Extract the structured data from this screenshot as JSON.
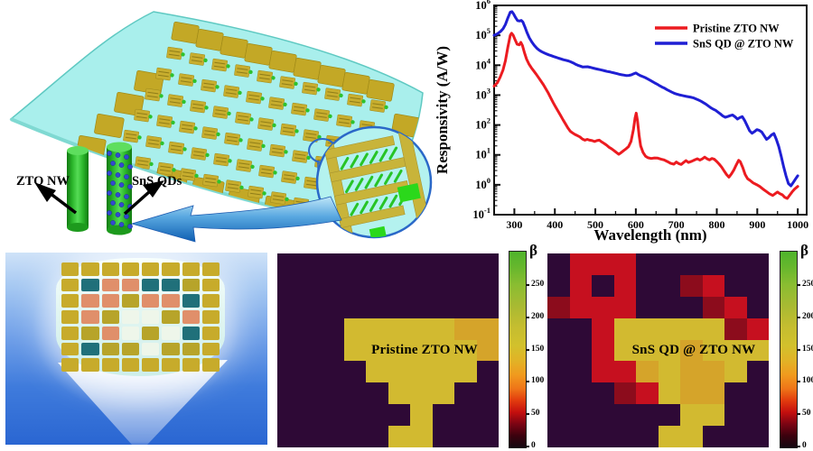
{
  "figure_labels": {
    "zto_nw": "ZTO NW",
    "sns_qds": "SnS QDs"
  },
  "colorbar": {
    "label": "β",
    "ticks": [
      0,
      50,
      100,
      150,
      200,
      250
    ],
    "value_max": 300
  },
  "heatmap_palette": {
    "D": "#2e0936",
    "M": "#8c0c1c",
    "R": "#c6101f",
    "Y": "#d2ba30",
    "O": "#d5a42a"
  },
  "panel_c_palette": {
    "p": "#c7ab2b",
    "g": "#b7a42a",
    "t": "#20707a",
    "s": "#e08f6a",
    "w": "#eef6ea"
  },
  "panel_c_pattern": [
    "pppppppp",
    "ptssttgp",
    "pssgsstp",
    "psgwwgsp",
    "pgswgwtp",
    "ptggwggp",
    "pppppppp"
  ],
  "chart_data": [
    {
      "type": "line",
      "title": "",
      "xlabel": "Wavelength (nm)",
      "ylabel": "Responsivity (A/W)",
      "x_ticks": [
        300,
        400,
        500,
        600,
        700,
        800,
        900,
        1000
      ],
      "x_range": [
        250,
        1022
      ],
      "y_scale": "log",
      "ylim": [
        0.1,
        1000000
      ],
      "y_tick_exponents": [
        6,
        5,
        4,
        3,
        2,
        1,
        0,
        -1
      ],
      "legend_position": "top-right",
      "grid": false,
      "series": [
        {
          "name": "Pristine ZTO NW",
          "color": "#ec1b20",
          "points": [
            [
              250,
              2000
            ],
            [
              258,
              2600
            ],
            [
              265,
              4000
            ],
            [
              272,
              7000
            ],
            [
              278,
              14000
            ],
            [
              284,
              40000
            ],
            [
              290,
              100000
            ],
            [
              293,
              118000
            ],
            [
              297,
              100000
            ],
            [
              302,
              70000
            ],
            [
              307,
              50000
            ],
            [
              312,
              48000
            ],
            [
              316,
              58000
            ],
            [
              320,
              45000
            ],
            [
              325,
              26000
            ],
            [
              330,
              16000
            ],
            [
              336,
              11000
            ],
            [
              342,
              8200
            ],
            [
              348,
              6400
            ],
            [
              354,
              5000
            ],
            [
              360,
              3800
            ],
            [
              366,
              2900
            ],
            [
              372,
              2200
            ],
            [
              378,
              1600
            ],
            [
              384,
              1150
            ],
            [
              390,
              800
            ],
            [
              396,
              560
            ],
            [
              402,
              400
            ],
            [
              408,
              290
            ],
            [
              414,
              210
            ],
            [
              420,
              150
            ],
            [
              426,
              110
            ],
            [
              432,
              80
            ],
            [
              438,
              62
            ],
            [
              444,
              54
            ],
            [
              450,
              48
            ],
            [
              456,
              44
            ],
            [
              462,
              40
            ],
            [
              468,
              34
            ],
            [
              474,
              31
            ],
            [
              480,
              33
            ],
            [
              486,
              31
            ],
            [
              492,
              30
            ],
            [
              498,
              28
            ],
            [
              504,
              30
            ],
            [
              510,
              31
            ],
            [
              516,
              27
            ],
            [
              522,
              24
            ],
            [
              528,
              21
            ],
            [
              534,
              18
            ],
            [
              540,
              16
            ],
            [
              546,
              14
            ],
            [
              552,
              12
            ],
            [
              558,
              10.5
            ],
            [
              564,
              12
            ],
            [
              570,
              14
            ],
            [
              576,
              16
            ],
            [
              582,
              19
            ],
            [
              588,
              28
            ],
            [
              594,
              70
            ],
            [
              598,
              170
            ],
            [
              601,
              250
            ],
            [
              604,
              140
            ],
            [
              608,
              45
            ],
            [
              612,
              20
            ],
            [
              618,
              12
            ],
            [
              624,
              9
            ],
            [
              630,
              8
            ],
            [
              638,
              7.6
            ],
            [
              646,
              7.9
            ],
            [
              654,
              7.8
            ],
            [
              662,
              7.2
            ],
            [
              670,
              6.8
            ],
            [
              678,
              6
            ],
            [
              686,
              5.2
            ],
            [
              694,
              4.9
            ],
            [
              700,
              5.8
            ],
            [
              706,
              5.1
            ],
            [
              712,
              4.8
            ],
            [
              718,
              5.6
            ],
            [
              724,
              6.4
            ],
            [
              730,
              5.6
            ],
            [
              738,
              6.1
            ],
            [
              746,
              6.9
            ],
            [
              752,
              7.4
            ],
            [
              758,
              6.7
            ],
            [
              764,
              7.3
            ],
            [
              770,
              8.4
            ],
            [
              776,
              7.4
            ],
            [
              782,
              6.8
            ],
            [
              788,
              7.6
            ],
            [
              794,
              7.1
            ],
            [
              800,
              6
            ],
            [
              806,
              4.9
            ],
            [
              812,
              3.9
            ],
            [
              818,
              2.9
            ],
            [
              824,
              2.2
            ],
            [
              830,
              1.8
            ],
            [
              836,
              2.3
            ],
            [
              842,
              3.1
            ],
            [
              848,
              4.6
            ],
            [
              854,
              6.6
            ],
            [
              858,
              5.9
            ],
            [
              864,
              3.8
            ],
            [
              870,
              2.2
            ],
            [
              876,
              1.6
            ],
            [
              882,
              1.4
            ],
            [
              890,
              1.15
            ],
            [
              898,
              1.02
            ],
            [
              906,
              0.88
            ],
            [
              914,
              0.72
            ],
            [
              922,
              0.6
            ],
            [
              930,
              0.5
            ],
            [
              938,
              0.44
            ],
            [
              944,
              0.5
            ],
            [
              950,
              0.57
            ],
            [
              956,
              0.5
            ],
            [
              962,
              0.46
            ],
            [
              968,
              0.38
            ],
            [
              974,
              0.35
            ],
            [
              980,
              0.45
            ],
            [
              986,
              0.58
            ],
            [
              992,
              0.72
            ],
            [
              1000,
              0.88
            ]
          ]
        },
        {
          "name": "SnS QD @ ZTO NW",
          "color": "#1f1fd4",
          "points": [
            [
              250,
              100000
            ],
            [
              258,
              112000
            ],
            [
              266,
              135000
            ],
            [
              272,
              165000
            ],
            [
              278,
              230000
            ],
            [
              284,
              380000
            ],
            [
              290,
              600000
            ],
            [
              294,
              620000
            ],
            [
              298,
              520000
            ],
            [
              303,
              390000
            ],
            [
              308,
              310000
            ],
            [
              313,
              300000
            ],
            [
              317,
              315000
            ],
            [
              321,
              280000
            ],
            [
              326,
              190000
            ],
            [
              331,
              125000
            ],
            [
              337,
              82000
            ],
            [
              343,
              60000
            ],
            [
              349,
              46000
            ],
            [
              355,
              37500
            ],
            [
              361,
              32000
            ],
            [
              367,
              28500
            ],
            [
              373,
              26000
            ],
            [
              379,
              24000
            ],
            [
              385,
              22200
            ],
            [
              391,
              20800
            ],
            [
              397,
              19500
            ],
            [
              403,
              18300
            ],
            [
              409,
              17200
            ],
            [
              415,
              16200
            ],
            [
              421,
              15300
            ],
            [
              427,
              14600
            ],
            [
              433,
              13900
            ],
            [
              439,
              13000
            ],
            [
              445,
              12000
            ],
            [
              451,
              10800
            ],
            [
              457,
              9900
            ],
            [
              463,
              9300
            ],
            [
              469,
              8700
            ],
            [
              475,
              8800
            ],
            [
              481,
              8900
            ],
            [
              487,
              8500
            ],
            [
              493,
              8100
            ],
            [
              499,
              7700
            ],
            [
              505,
              7400
            ],
            [
              511,
              7100
            ],
            [
              517,
              6800
            ],
            [
              523,
              6500
            ],
            [
              529,
              6200
            ],
            [
              535,
              6000
            ],
            [
              541,
              5750
            ],
            [
              547,
              5500
            ],
            [
              553,
              5250
            ],
            [
              559,
              5000
            ],
            [
              565,
              4800
            ],
            [
              571,
              4650
            ],
            [
              577,
              4500
            ],
            [
              583,
              4550
            ],
            [
              589,
              4750
            ],
            [
              595,
              5150
            ],
            [
              600,
              5500
            ],
            [
              605,
              5000
            ],
            [
              611,
              4500
            ],
            [
              617,
              4150
            ],
            [
              623,
              3850
            ],
            [
              629,
              3500
            ],
            [
              635,
              3150
            ],
            [
              641,
              2850
            ],
            [
              647,
              2550
            ],
            [
              653,
              2300
            ],
            [
              659,
              2050
            ],
            [
              665,
              1850
            ],
            [
              671,
              1700
            ],
            [
              677,
              1520
            ],
            [
              683,
              1380
            ],
            [
              689,
              1250
            ],
            [
              695,
              1150
            ],
            [
              701,
              1080
            ],
            [
              707,
              1020
            ],
            [
              713,
              980
            ],
            [
              719,
              940
            ],
            [
              725,
              905
            ],
            [
              731,
              875
            ],
            [
              737,
              845
            ],
            [
              743,
              800
            ],
            [
              749,
              745
            ],
            [
              755,
              685
            ],
            [
              761,
              625
            ],
            [
              767,
              560
            ],
            [
              773,
              500
            ],
            [
              779,
              435
            ],
            [
              785,
              380
            ],
            [
              791,
              340
            ],
            [
              797,
              310
            ],
            [
              803,
              270
            ],
            [
              809,
              235
            ],
            [
              815,
              200
            ],
            [
              821,
              182
            ],
            [
              827,
              192
            ],
            [
              833,
              205
            ],
            [
              839,
              216
            ],
            [
              845,
              188
            ],
            [
              851,
              158
            ],
            [
              857,
              176
            ],
            [
              863,
              190
            ],
            [
              869,
              140
            ],
            [
              875,
              95
            ],
            [
              881,
              64
            ],
            [
              887,
              53
            ],
            [
              893,
              60
            ],
            [
              899,
              70
            ],
            [
              905,
              66
            ],
            [
              911,
              58
            ],
            [
              917,
              44
            ],
            [
              923,
              33
            ],
            [
              929,
              38
            ],
            [
              935,
              46
            ],
            [
              941,
              52
            ],
            [
              947,
              33
            ],
            [
              953,
              19
            ],
            [
              959,
              9
            ],
            [
              965,
              4
            ],
            [
              971,
              2
            ],
            [
              977,
              1.1
            ],
            [
              983,
              0.92
            ],
            [
              989,
              1.2
            ],
            [
              995,
              1.6
            ],
            [
              1000,
              2
            ]
          ]
        }
      ]
    },
    {
      "type": "heatmap",
      "title": "Pristine ZTO NW",
      "colorbar_label": "β",
      "value_range": [
        0,
        300
      ],
      "value_map": {
        "D": 10,
        "M": 35,
        "R": 60,
        "O": 110,
        "Y": 150
      },
      "cells": [
        "DDDDDDDDDD",
        "DDDDDDDDDD",
        "DDDDDDDDDD",
        "DDDYYYYYOO",
        "DDDYYYYYYO",
        "DDDDYYYYYD",
        "DDDDDYYYDD",
        "DDDDDDYDDD",
        "DDDDDYYDDD"
      ]
    },
    {
      "type": "heatmap",
      "title": "SnS QD @ ZTO NW",
      "colorbar_label": "β",
      "value_range": [
        0,
        300
      ],
      "value_map": {
        "D": 10,
        "M": 35,
        "R": 60,
        "O": 110,
        "Y": 150
      },
      "cells": [
        "DRRRDDDDDD",
        "DRDRDDMRDD",
        "MRRRDDDMRD",
        "DDRYYYYYMR",
        "DDRYYYOYYY",
        "DDRROYOOYD",
        "DDDMRYOODD",
        "DDDDDDYYDD",
        "DDDDDYYDDD"
      ]
    }
  ]
}
